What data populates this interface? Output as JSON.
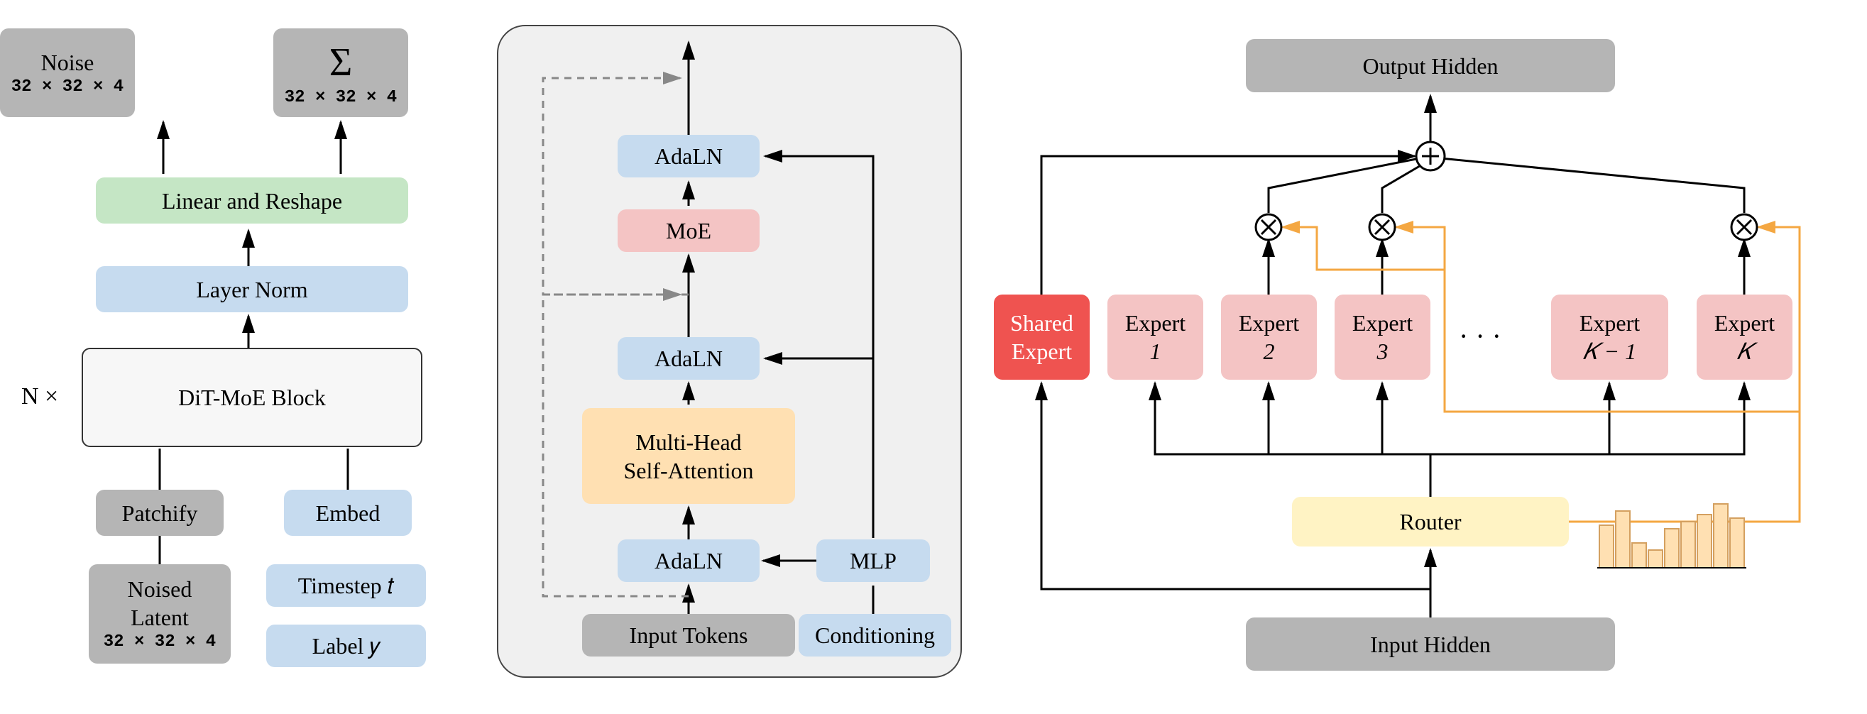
{
  "panel1": {
    "n_times": "N ×",
    "noise": {
      "title": "Noise",
      "shape": "32 × 32 × 4"
    },
    "sigma": {
      "symbol": "Σ",
      "shape": "32 × 32 × 4"
    },
    "linear_reshape": "Linear and Reshape",
    "layer_norm": "Layer Norm",
    "dit_block": "DiT-MoE Block",
    "patchify": "Patchify",
    "embed": "Embed",
    "noised_latent": {
      "title": "Noised",
      "title2": "Latent",
      "shape": "32 × 32 × 4"
    },
    "timestep": "Timestep 𝑡",
    "label_y": "Label 𝑦",
    "colors": {
      "gray": "#b5b5b5",
      "blue": "#c6dbef",
      "green": "#c5e6c5",
      "lightgray": "#f7f7f7",
      "border": "#333333"
    }
  },
  "panel2": {
    "adaln": "AdaLN",
    "moe": "MoE",
    "mhsa": {
      "l1": "Multi-Head",
      "l2": "Self-Attention"
    },
    "mlp": "MLP",
    "input_tokens": "Input Tokens",
    "conditioning": "Conditioning",
    "colors": {
      "container_bg": "#f0f0f0",
      "container_border": "#444444",
      "pink": "#f4c4c4",
      "orange": "#ffe0b2",
      "dash": "#888888"
    }
  },
  "panel3": {
    "output_hidden": "Output Hidden",
    "input_hidden": "Input Hidden",
    "router": "Router",
    "shared_expert": {
      "l1": "Shared",
      "l2": "Expert"
    },
    "experts": [
      {
        "l1": "Expert",
        "l2": "1"
      },
      {
        "l1": "Expert",
        "l2": "2"
      },
      {
        "l1": "Expert",
        "l2": "3"
      },
      {
        "l1": "Expert",
        "l2": "𝐾 − 1"
      },
      {
        "l1": "Expert",
        "l2": "𝐾"
      }
    ],
    "ellipsis": "· · ·",
    "bar_heights": [
      60,
      80,
      35,
      25,
      55,
      65,
      75,
      90,
      70
    ],
    "colors": {
      "red": "#ef5350",
      "pink": "#f4c4c4",
      "yellow": "#fff3c4",
      "bar_fill": "#ffe0b2",
      "bar_stroke": "#d4a060",
      "orange_line": "#f4a742",
      "gray": "#b5b5b5"
    }
  },
  "style": {
    "font_main": 32,
    "font_sub": 24,
    "arrow_color": "#000000",
    "arrow_width": 3
  }
}
